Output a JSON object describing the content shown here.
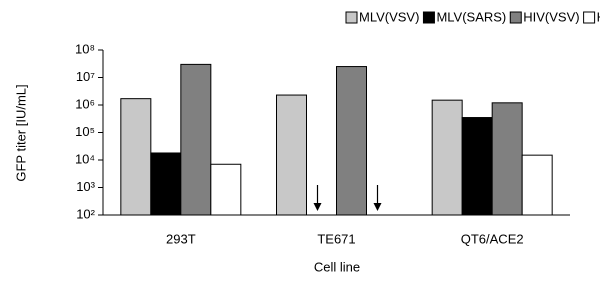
{
  "chart_data": {
    "type": "bar",
    "log_scale": true,
    "y_label": "GFP titer [IU/mL]",
    "x_label": "Cell line",
    "categories": [
      "293T",
      "TE671",
      "QT6/ACE2"
    ],
    "series": [
      {
        "name": "MLV(VSV)",
        "color": "#c8c8c8",
        "values": [
          1700000,
          2300000,
          1500000
        ]
      },
      {
        "name": "MLV(SARS)",
        "color": "#000000",
        "values": [
          18000,
          null,
          350000
        ]
      },
      {
        "name": "HIV(VSV)",
        "color": "#808080",
        "values": [
          30000000,
          25000000,
          1200000
        ]
      },
      {
        "name": "HIV(SARS)",
        "color": "#ffffff",
        "values": [
          7000,
          null,
          15000
        ]
      }
    ],
    "ylim": [
      100,
      100000000
    ],
    "yticks": [
      {
        "value": 100,
        "label": "10²"
      },
      {
        "value": 1000,
        "label": "10³"
      },
      {
        "value": 10000,
        "label": "10⁴"
      },
      {
        "value": 100000,
        "label": "10⁵"
      },
      {
        "value": 1000000,
        "label": "10⁶"
      },
      {
        "value": 10000000,
        "label": "10⁷"
      },
      {
        "value": 100000000,
        "label": "10⁸"
      }
    ],
    "legend": "top"
  }
}
